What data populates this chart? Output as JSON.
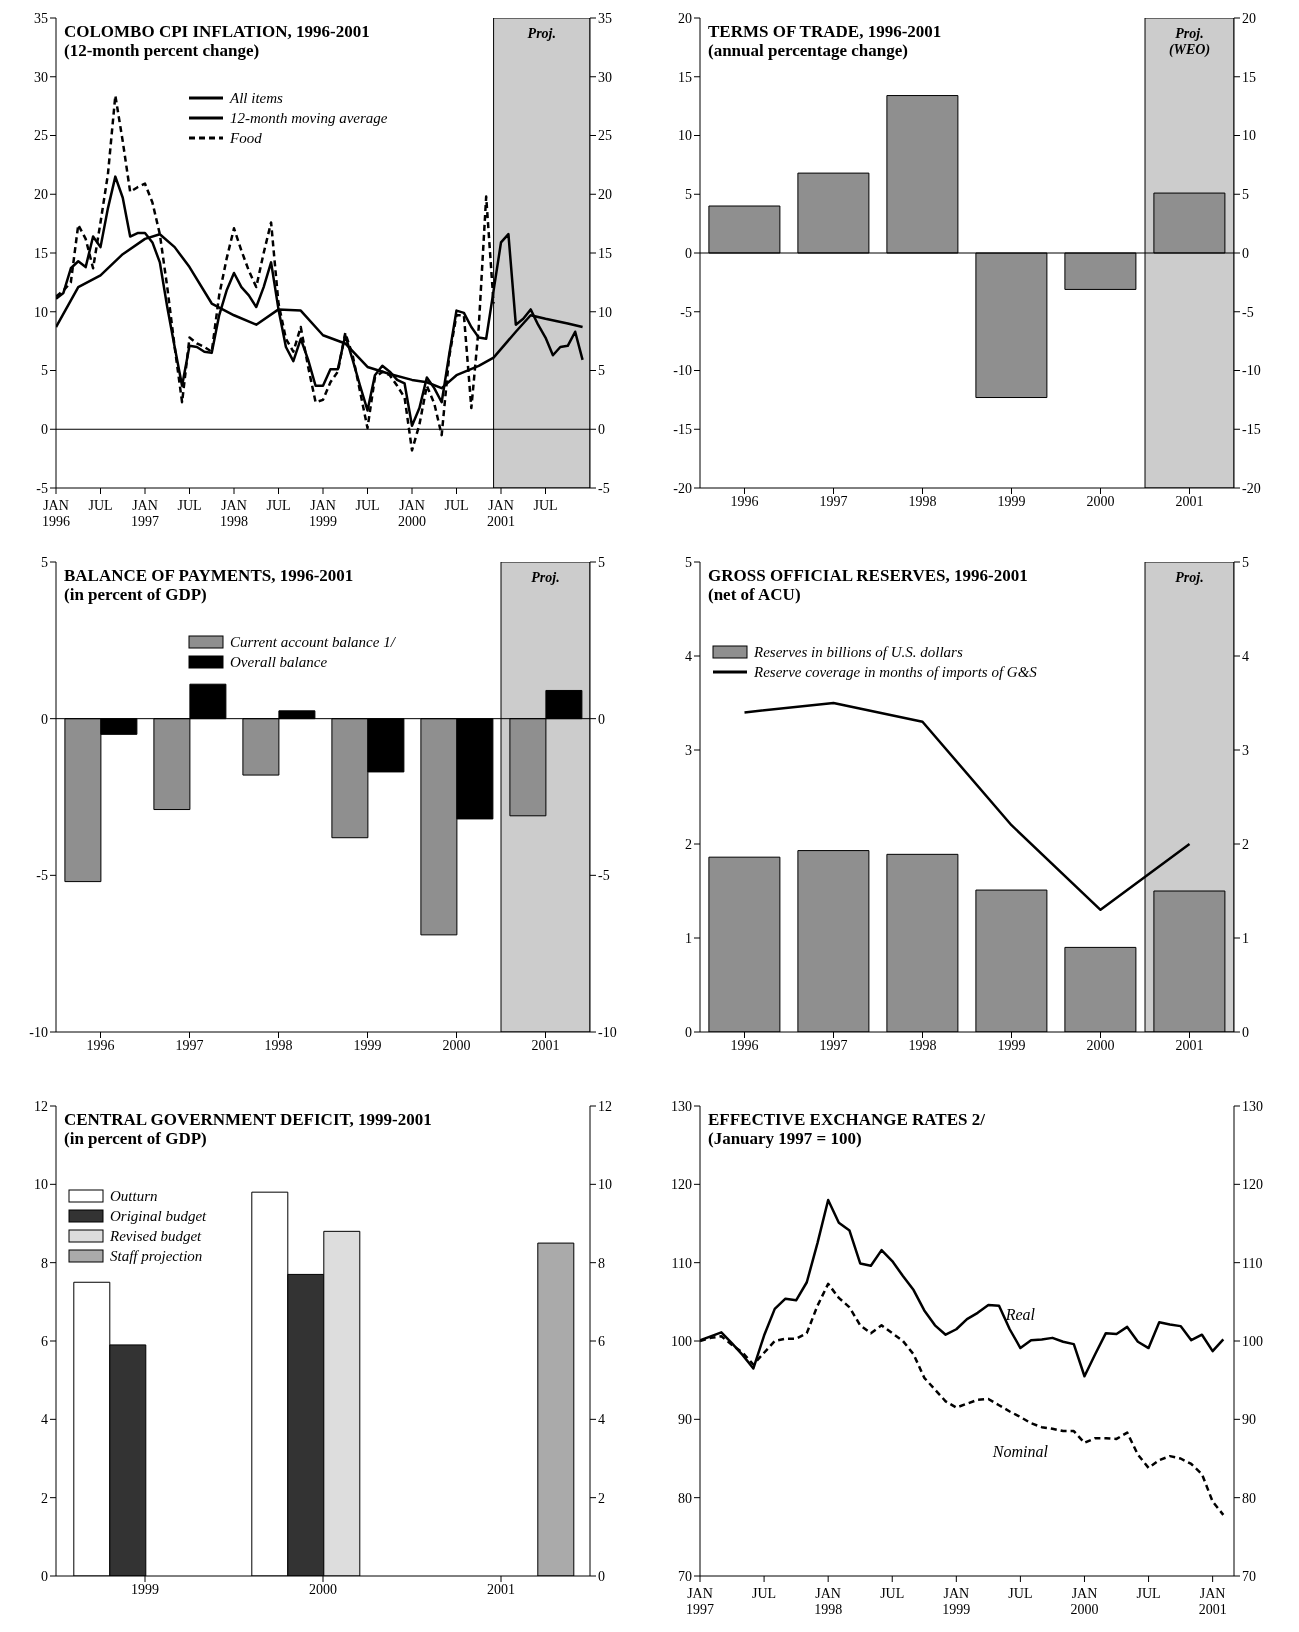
{
  "chart_data": [
    {
      "type": "line",
      "title": "COLOMBO CPI INFLATION, 1996-2001",
      "subtitle": "(12-month percent change)",
      "x": [
        "1996-01",
        "1996-02",
        "1996-03",
        "1996-04",
        "1996-05",
        "1996-06",
        "1996-07",
        "1996-08",
        "1996-09",
        "1996-10",
        "1996-11",
        "1996-12",
        "1997-01",
        "1997-02",
        "1997-03",
        "1997-04",
        "1997-05",
        "1997-06",
        "1997-07",
        "1997-08",
        "1997-09",
        "1997-10",
        "1997-11",
        "1997-12",
        "1998-01",
        "1998-02",
        "1998-03",
        "1998-04",
        "1998-05",
        "1998-06",
        "1998-07",
        "1998-08",
        "1998-09",
        "1998-10",
        "1998-11",
        "1998-12",
        "1999-01",
        "1999-02",
        "1999-03",
        "1999-04",
        "1999-05",
        "1999-06",
        "1999-07",
        "1999-08",
        "1999-09",
        "1999-10",
        "1999-11",
        "1999-12",
        "2000-01",
        "2000-02",
        "2000-03",
        "2000-04",
        "2000-05",
        "2000-06",
        "2000-07",
        "2000-08",
        "2000-09",
        "2000-10",
        "2000-11",
        "2000-12",
        "2001-01",
        "2001-02",
        "2001-03",
        "2001-04",
        "2001-05",
        "2001-06",
        "2001-07",
        "2001-08",
        "2001-09",
        "2001-10",
        "2001-11",
        "2001-12"
      ],
      "series": [
        {
          "name": "All items",
          "color": "#000000",
          "values": [
            11.1,
            11.6,
            13.7,
            14.3,
            13.8,
            16.4,
            15.5,
            18.8,
            21.5,
            19.7,
            16.4,
            16.7,
            16.7,
            15.9,
            14.2,
            10.4,
            7.0,
            3.7,
            7.1,
            7.0,
            6.6,
            6.5,
            9.7,
            11.8,
            13.3,
            12.1,
            11.4,
            10.4,
            12.1,
            14.2,
            10.2,
            7.0,
            5.8,
            7.7,
            5.9,
            3.7,
            3.7,
            5.1,
            5.1,
            8.0,
            5.9,
            3.7,
            1.6,
            4.6,
            5.4,
            4.9,
            4.2,
            3.9,
            0.3,
            1.8,
            4.4,
            3.5,
            2.3,
            6.3,
            10.1,
            9.9,
            8.7,
            7.8,
            7.7,
            11.8,
            15.9,
            16.6,
            8.9,
            9.4,
            10.2,
            8.9,
            7.8,
            6.3,
            7.0,
            7.1,
            8.3,
            5.9
          ]
        },
        {
          "name": "12-month moving average",
          "color": "#000000",
          "x": [
            "1996-01",
            "1996-04",
            "1996-07",
            "1996-10",
            "1997-01",
            "1997-03",
            "1997-05",
            "1997-07",
            "1997-10",
            "1998-01",
            "1998-04",
            "1998-07",
            "1998-10",
            "1999-01",
            "1999-04",
            "1999-07",
            "1999-10",
            "2000-01",
            "2000-03",
            "2000-05",
            "2000-07",
            "2000-10",
            "2000-12",
            "2001-03",
            "2001-05",
            "2001-07",
            "2001-10",
            "2001-12"
          ],
          "values": [
            8.7,
            12.1,
            13.1,
            14.9,
            16.2,
            16.6,
            15.5,
            13.8,
            10.7,
            9.7,
            8.9,
            10.2,
            10.1,
            8.0,
            7.3,
            5.3,
            4.7,
            4.2,
            4.0,
            3.5,
            4.6,
            5.4,
            6.1,
            8.3,
            9.7,
            9.4,
            9.0,
            8.7
          ]
        },
        {
          "name": "Food",
          "color": "#000000",
          "line_style": "dashed",
          "values": [
            11.3,
            11.8,
            12.5,
            17.4,
            16.2,
            13.7,
            17.6,
            21.7,
            28.4,
            24.5,
            20.2,
            20.6,
            20.9,
            19.3,
            16.6,
            12.1,
            7.0,
            2.3,
            7.8,
            7.3,
            7.0,
            6.6,
            11.4,
            14.5,
            17.1,
            15.2,
            13.5,
            12.1,
            15.0,
            17.6,
            10.7,
            7.7,
            6.6,
            8.7,
            5.3,
            2.3,
            2.5,
            4.0,
            4.9,
            8.2,
            6.3,
            3.2,
            0.1,
            4.4,
            4.9,
            4.6,
            3.7,
            2.7,
            -1.8,
            0.4,
            3.7,
            2.2,
            -0.5,
            6.1,
            9.7,
            9.7,
            1.8,
            8.7,
            19.8,
            10.7,
            null,
            null,
            null,
            null,
            null,
            null,
            null,
            null,
            null,
            null,
            null,
            null
          ]
        }
      ],
      "xlim": [
        "1996-01",
        "2002-01"
      ],
      "xticks": [
        {
          "value": "1996-01",
          "label": "JAN 1996"
        },
        {
          "value": "1996-07",
          "label": "JUL"
        },
        {
          "value": "1997-01",
          "label": "JAN 1997"
        },
        {
          "value": "1997-07",
          "label": "JUL"
        },
        {
          "value": "1998-01",
          "label": "JAN 1998"
        },
        {
          "value": "1998-07",
          "label": "JUL"
        },
        {
          "value": "1999-01",
          "label": "JAN 1999"
        },
        {
          "value": "1999-07",
          "label": "JUL"
        },
        {
          "value": "2000-01",
          "label": "JAN 2000"
        },
        {
          "value": "2000-07",
          "label": "JUL"
        },
        {
          "value": "2001-01",
          "label": "JAN 2001"
        },
        {
          "value": "2001-07",
          "label": "JUL"
        }
      ],
      "ylim": [
        -5,
        35
      ],
      "yticks": [
        -5,
        0,
        5,
        10,
        15,
        20,
        25,
        30,
        35
      ],
      "y2lim": [
        -5,
        35
      ],
      "y2ticks": [
        -5,
        0,
        5,
        10,
        15,
        20,
        25,
        30,
        35
      ],
      "ref_lines": [
        {
          "axis": "y",
          "value": 0
        }
      ],
      "bands": [
        {
          "axis": "x",
          "from": "2000-12",
          "to": "2002-01",
          "label": "Proj.",
          "color": "#cccccc"
        }
      ],
      "legend": "top"
    },
    {
      "type": "bar",
      "title": "TERMS OF TRADE, 1996-2001",
      "subtitle": "(annual percentage change)",
      "categories": [
        "1996",
        "1997",
        "1998",
        "1999",
        "2000",
        "2001"
      ],
      "values": [
        4.0,
        6.8,
        13.4,
        -12.3,
        -3.1,
        5.1
      ],
      "color": "#8f8f8f",
      "ylim": [
        -20,
        20
      ],
      "yticks": [
        -20,
        -15,
        -10,
        -5,
        0,
        5,
        10,
        15,
        20
      ],
      "y2lim": [
        -20,
        20
      ],
      "y2ticks": [
        -20,
        -15,
        -10,
        -5,
        0,
        5,
        10,
        15,
        20
      ],
      "ref_lines": [
        {
          "axis": "y",
          "value": 0
        }
      ],
      "bands": [
        {
          "axis": "x",
          "from": "2001",
          "to": "2001",
          "label": "Proj. (WEO)",
          "color": "#cccccc"
        }
      ]
    },
    {
      "type": "bar",
      "title": "BALANCE OF PAYMENTS, 1996-2001",
      "subtitle": "(in percent of GDP)",
      "categories": [
        "1996",
        "1997",
        "1998",
        "1999",
        "2000",
        "2001"
      ],
      "series": [
        {
          "name": "Current account balance 1/",
          "color": "#8f8f8f",
          "values": [
            -5.2,
            -2.9,
            -1.8,
            -3.8,
            -6.9,
            -3.1
          ]
        },
        {
          "name": "Overall balance",
          "color": "#000000",
          "values": [
            -0.5,
            1.1,
            0.25,
            -1.7,
            -3.2,
            0.9
          ]
        }
      ],
      "ylim": [
        -10,
        5
      ],
      "yticks": [
        -10,
        -5,
        0,
        5
      ],
      "y2lim": [
        -10,
        5
      ],
      "y2ticks": [
        -10,
        -5,
        0,
        5
      ],
      "ref_lines": [
        {
          "axis": "y",
          "value": 0
        }
      ],
      "bands": [
        {
          "axis": "x",
          "from": "2001",
          "to": "2001",
          "label": "Proj.",
          "color": "#cccccc"
        }
      ],
      "legend": "top"
    },
    {
      "type": "bar",
      "title": "GROSS OFFICIAL RESERVES, 1996-2001",
      "subtitle": "(net of ACU)",
      "categories": [
        "1996",
        "1997",
        "1998",
        "1999",
        "2000",
        "2001"
      ],
      "series": [
        {
          "name": "Reserves in billions of U.S. dollars",
          "color": "#8f8f8f",
          "values": [
            1.86,
            1.93,
            1.89,
            1.51,
            0.9,
            1.5
          ]
        },
        {
          "name": "Reserve coverage in months of imports of G&S",
          "type": "line",
          "color": "#000000",
          "values": [
            3.4,
            3.5,
            3.3,
            2.2,
            1.3,
            2.0
          ]
        }
      ],
      "ylim": [
        0,
        5
      ],
      "yticks": [
        0,
        1,
        2,
        3,
        4,
        5
      ],
      "y2lim": [
        0,
        5
      ],
      "y2ticks": [
        0,
        1,
        2,
        3,
        4,
        5
      ],
      "bands": [
        {
          "axis": "x",
          "from": "2001",
          "to": "2001",
          "label": "Proj.",
          "color": "#cccccc"
        }
      ],
      "legend": "top left"
    },
    {
      "type": "bar",
      "title": "CENTRAL GOVERNMENT DEFICIT, 1999-2001",
      "subtitle": "(in percent of GDP)",
      "categories": [
        "1999",
        "2000",
        "2001"
      ],
      "series": [
        {
          "name": "Outturn",
          "color": "#ffffff",
          "values": [
            7.5,
            9.8,
            null
          ]
        },
        {
          "name": "Original budget",
          "color": "#333333",
          "values": [
            5.9,
            7.7,
            null
          ]
        },
        {
          "name": "Revised budget",
          "color": "#dddddd",
          "values": [
            null,
            8.8,
            null
          ]
        },
        {
          "name": "Staff projection",
          "color": "#aaaaaa",
          "values": [
            null,
            null,
            8.5
          ]
        }
      ],
      "ylim": [
        0,
        12
      ],
      "yticks": [
        0,
        2,
        4,
        6,
        8,
        10,
        12
      ],
      "y2lim": [
        0,
        12
      ],
      "y2ticks": [
        0,
        2,
        4,
        6,
        8,
        10,
        12
      ],
      "legend": "top left"
    },
    {
      "type": "line",
      "title": "EFFECTIVE EXCHANGE RATES  2/",
      "subtitle": "(January 1997 = 100)",
      "x": [
        "1997-01",
        "1997-02",
        "1997-03",
        "1997-04",
        "1997-05",
        "1997-06",
        "1997-07",
        "1997-08",
        "1997-09",
        "1997-10",
        "1997-11",
        "1997-12",
        "1998-01",
        "1998-02",
        "1998-03",
        "1998-04",
        "1998-05",
        "1998-06",
        "1998-07",
        "1998-08",
        "1998-09",
        "1998-10",
        "1998-11",
        "1998-12",
        "1999-01",
        "1999-02",
        "1999-03",
        "1999-04",
        "1999-05",
        "1999-06",
        "1999-07",
        "1999-08",
        "1999-09",
        "1999-10",
        "1999-11",
        "1999-12",
        "2000-01",
        "2000-02",
        "2000-03",
        "2000-04",
        "2000-05",
        "2000-06",
        "2000-07",
        "2000-08",
        "2000-09",
        "2000-10",
        "2000-11",
        "2000-12",
        "2001-01",
        "2001-02"
      ],
      "series": [
        {
          "name": "Real",
          "color": "#000000",
          "values": [
            100.1,
            100.6,
            101.1,
            99.7,
            98.2,
            96.5,
            100.7,
            104.1,
            105.4,
            105.2,
            107.5,
            112.5,
            118.0,
            115.1,
            114.1,
            109.9,
            109.6,
            111.6,
            110.2,
            108.3,
            106.5,
            103.9,
            102.0,
            100.8,
            101.5,
            102.8,
            103.6,
            104.6,
            104.5,
            101.5,
            99.1,
            100.1,
            100.2,
            100.4,
            99.9,
            99.6,
            95.5,
            98.3,
            101.0,
            100.9,
            101.8,
            99.9,
            99.1,
            102.4,
            102.1,
            101.9,
            100.1,
            100.8,
            98.7,
            100.2
          ]
        },
        {
          "name": "Nominal",
          "color": "#000000",
          "line_style": "dashed",
          "values": [
            100.0,
            100.4,
            100.6,
            99.5,
            98.5,
            97.0,
            98.5,
            100.0,
            100.3,
            100.3,
            101.0,
            104.5,
            107.3,
            105.5,
            104.3,
            102.0,
            101.0,
            102.0,
            101.0,
            100.0,
            98.3,
            95.3,
            93.8,
            92.3,
            91.5,
            92.0,
            92.5,
            92.6,
            91.8,
            91.0,
            90.3,
            89.5,
            89.0,
            88.8,
            88.5,
            88.5,
            87.0,
            87.6,
            87.6,
            87.5,
            88.3,
            85.5,
            83.8,
            84.8,
            85.3,
            85.0,
            84.3,
            83.0,
            79.5,
            77.8
          ]
        }
      ],
      "xlim": [
        "1997-01",
        "2001-03"
      ],
      "xticks": [
        {
          "value": "1997-01",
          "label": "JAN 1997"
        },
        {
          "value": "1997-07",
          "label": "JUL"
        },
        {
          "value": "1998-01",
          "label": "JAN 1998"
        },
        {
          "value": "1998-07",
          "label": "JUL"
        },
        {
          "value": "1999-01",
          "label": "JAN 1999"
        },
        {
          "value": "1999-07",
          "label": "JUL"
        },
        {
          "value": "2000-01",
          "label": "JAN 2000"
        },
        {
          "value": "2000-07",
          "label": "JUL"
        },
        {
          "value": "2001-01",
          "label": "JAN 2001"
        }
      ],
      "ylim": [
        70,
        130
      ],
      "yticks": [
        70,
        80,
        90,
        100,
        110,
        120,
        130
      ],
      "y2lim": [
        70,
        130
      ],
      "y2ticks": [
        70,
        80,
        90,
        100,
        110,
        120,
        130
      ]
    }
  ]
}
